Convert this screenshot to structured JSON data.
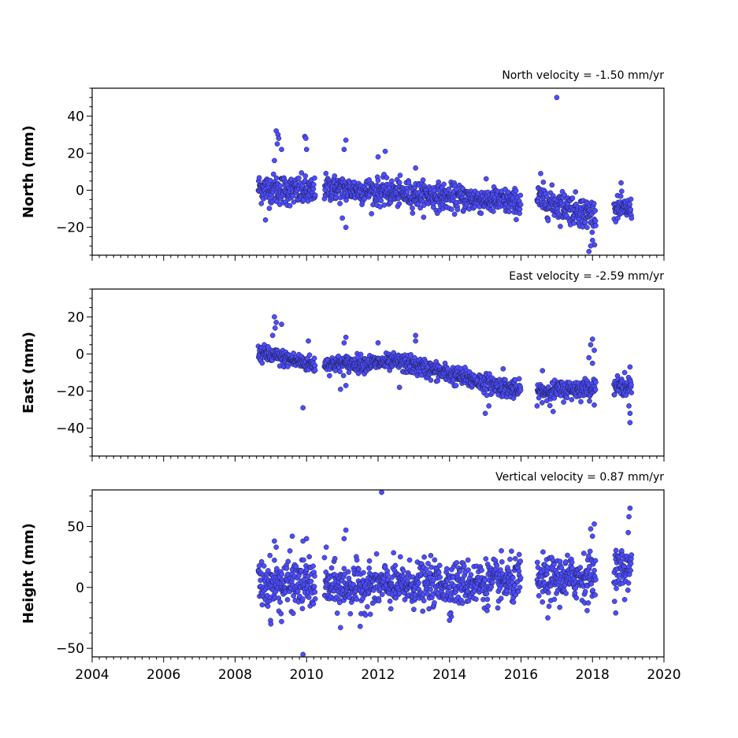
{
  "chart_data": [
    {
      "type": "scatter",
      "title": "North velocity = -1.50 mm/yr",
      "xlabel": "",
      "ylabel": "North (mm)",
      "xlim": [
        2004,
        2020
      ],
      "ylim": [
        -35,
        55
      ],
      "xticks": [
        2004,
        2006,
        2008,
        2010,
        2012,
        2014,
        2016,
        2018,
        2020
      ],
      "yticks": [
        -20,
        0,
        20,
        40
      ],
      "ytick_labels": [
        "−20",
        "0",
        "20",
        "40"
      ],
      "grid": false,
      "marker_color": "#4d4dff",
      "series": [
        {
          "segments": [
            {
              "start": 2008.65,
              "end": 2010.25,
              "base": 1.2,
              "rate": -1.5,
              "noise": 4
            },
            {
              "start": 2010.5,
              "end": 2016.0,
              "base": 1.5,
              "rate": -1.5,
              "noise": 3.5
            },
            {
              "start": 2016.45,
              "end": 2018.1,
              "base": -4.5,
              "rate": -5.5,
              "noise": 4
            },
            {
              "start": 2018.6,
              "end": 2019.1,
              "base": -10,
              "rate": 0,
              "noise": 3
            }
          ],
          "outliers": [
            [
              2009.15,
              32
            ],
            [
              2009.2,
              30
            ],
            [
              2009.22,
              28
            ],
            [
              2009.18,
              25
            ],
            [
              2009.3,
              22
            ],
            [
              2009.1,
              16
            ],
            [
              2009.95,
              29
            ],
            [
              2010.0,
              22
            ],
            [
              2009.98,
              28
            ],
            [
              2011.1,
              27
            ],
            [
              2011.05,
              22
            ],
            [
              2011.1,
              -20
            ],
            [
              2011.0,
              -15
            ],
            [
              2012.2,
              21
            ],
            [
              2012.0,
              18
            ],
            [
              2013.05,
              12
            ],
            [
              2008.85,
              -16
            ],
            [
              2017.0,
              50
            ],
            [
              2017.9,
              -33
            ],
            [
              2017.95,
              -30
            ],
            [
              2018.0,
              -27
            ],
            [
              2017.85,
              -20
            ],
            [
              2016.55,
              9
            ],
            [
              2018.8,
              4
            ]
          ]
        }
      ]
    },
    {
      "type": "scatter",
      "title": "East velocity = -2.59 mm/yr",
      "xlabel": "",
      "ylabel": "East (mm)",
      "xlim": [
        2004,
        2020
      ],
      "ylim": [
        -55,
        35
      ],
      "xticks": [
        2004,
        2006,
        2008,
        2010,
        2012,
        2014,
        2016,
        2018,
        2020
      ],
      "yticks": [
        -40,
        -20,
        0,
        20
      ],
      "ytick_labels": [
        "−40",
        "−20",
        "0",
        "20"
      ],
      "grid": false,
      "marker_color": "#4d4dff",
      "series": [
        {
          "segments": [
            {
              "start": 2008.65,
              "end": 2010.25,
              "base": 0.5,
              "rate": -4.0,
              "noise": 2.2
            },
            {
              "start": 2010.5,
              "end": 2012.6,
              "base": -5.5,
              "rate": 0.5,
              "noise": 2.2
            },
            {
              "start": 2012.6,
              "end": 2016.0,
              "base": -4.5,
              "rate": -4.6,
              "noise": 2.5
            },
            {
              "start": 2016.45,
              "end": 2018.1,
              "base": -20.5,
              "rate": 1.5,
              "noise": 2.5
            },
            {
              "start": 2018.6,
              "end": 2019.1,
              "base": -17.5,
              "rate": 0,
              "noise": 2.2
            }
          ],
          "outliers": [
            [
              2009.1,
              20
            ],
            [
              2009.15,
              17
            ],
            [
              2009.12,
              14
            ],
            [
              2009.3,
              16
            ],
            [
              2009.05,
              10
            ],
            [
              2009.9,
              -29
            ],
            [
              2010.05,
              7
            ],
            [
              2011.1,
              9
            ],
            [
              2011.05,
              6
            ],
            [
              2010.95,
              -19
            ],
            [
              2011.1,
              -17
            ],
            [
              2012.0,
              6
            ],
            [
              2013.05,
              10
            ],
            [
              2013.05,
              7
            ],
            [
              2012.6,
              -18
            ],
            [
              2015.5,
              -8
            ],
            [
              2015.0,
              -32
            ],
            [
              2015.1,
              -28
            ],
            [
              2016.6,
              -9
            ],
            [
              2016.9,
              -31
            ],
            [
              2018.0,
              8
            ],
            [
              2017.95,
              5
            ],
            [
              2018.05,
              2
            ],
            [
              2017.9,
              -2
            ],
            [
              2018.0,
              -5
            ],
            [
              2019.05,
              -37
            ],
            [
              2019.05,
              -32
            ],
            [
              2019.02,
              -28
            ],
            [
              2019.05,
              -7
            ],
            [
              2018.9,
              -10
            ]
          ]
        }
      ]
    },
    {
      "type": "scatter",
      "title": "Vertical velocity = 0.87 mm/yr",
      "xlabel": "",
      "ylabel": "Height (mm)",
      "xlim": [
        2004,
        2020
      ],
      "ylim": [
        -57,
        80
      ],
      "xticks": [
        2004,
        2006,
        2008,
        2010,
        2012,
        2014,
        2016,
        2018,
        2020
      ],
      "xtick_labels": [
        "2004",
        "2006",
        "2008",
        "2010",
        "2012",
        "2014",
        "2016",
        "2018",
        "2020"
      ],
      "yticks": [
        -50,
        0,
        50
      ],
      "ytick_labels": [
        "−50",
        "0",
        "50"
      ],
      "grid": false,
      "marker_color": "#4d4dff",
      "series": [
        {
          "segments": [
            {
              "start": 2008.65,
              "end": 2010.25,
              "base": 2,
              "rate": 0.5,
              "noise": 10
            },
            {
              "start": 2010.5,
              "end": 2016.0,
              "base": 0,
              "rate": 0.87,
              "noise": 9
            },
            {
              "start": 2016.45,
              "end": 2018.1,
              "base": 5,
              "rate": 3,
              "noise": 9
            },
            {
              "start": 2018.6,
              "end": 2019.1,
              "base": 15,
              "rate": 5,
              "noise": 8
            }
          ],
          "outliers": [
            [
              2012.1,
              78
            ],
            [
              2009.9,
              -55
            ],
            [
              2010.0,
              40
            ],
            [
              2009.9,
              38
            ],
            [
              2009.6,
              42
            ],
            [
              2009.1,
              38
            ],
            [
              2009.15,
              33
            ],
            [
              2011.1,
              47
            ],
            [
              2011.05,
              40
            ],
            [
              2010.55,
              33
            ],
            [
              2010.95,
              -33
            ],
            [
              2011.5,
              -32
            ],
            [
              2009.0,
              -30
            ],
            [
              2009.3,
              -28
            ],
            [
              2014.0,
              -27
            ],
            [
              2014.0,
              -22
            ],
            [
              2016.75,
              -25
            ],
            [
              2017.85,
              -19
            ],
            [
              2019.05,
              65
            ],
            [
              2019.02,
              58
            ],
            [
              2019.0,
              45
            ],
            [
              2018.9,
              -10
            ],
            [
              2018.65,
              -21
            ],
            [
              2018.05,
              52
            ],
            [
              2017.95,
              48
            ],
            [
              2018.0,
              42
            ],
            [
              2015.95,
              27
            ]
          ]
        }
      ]
    }
  ]
}
